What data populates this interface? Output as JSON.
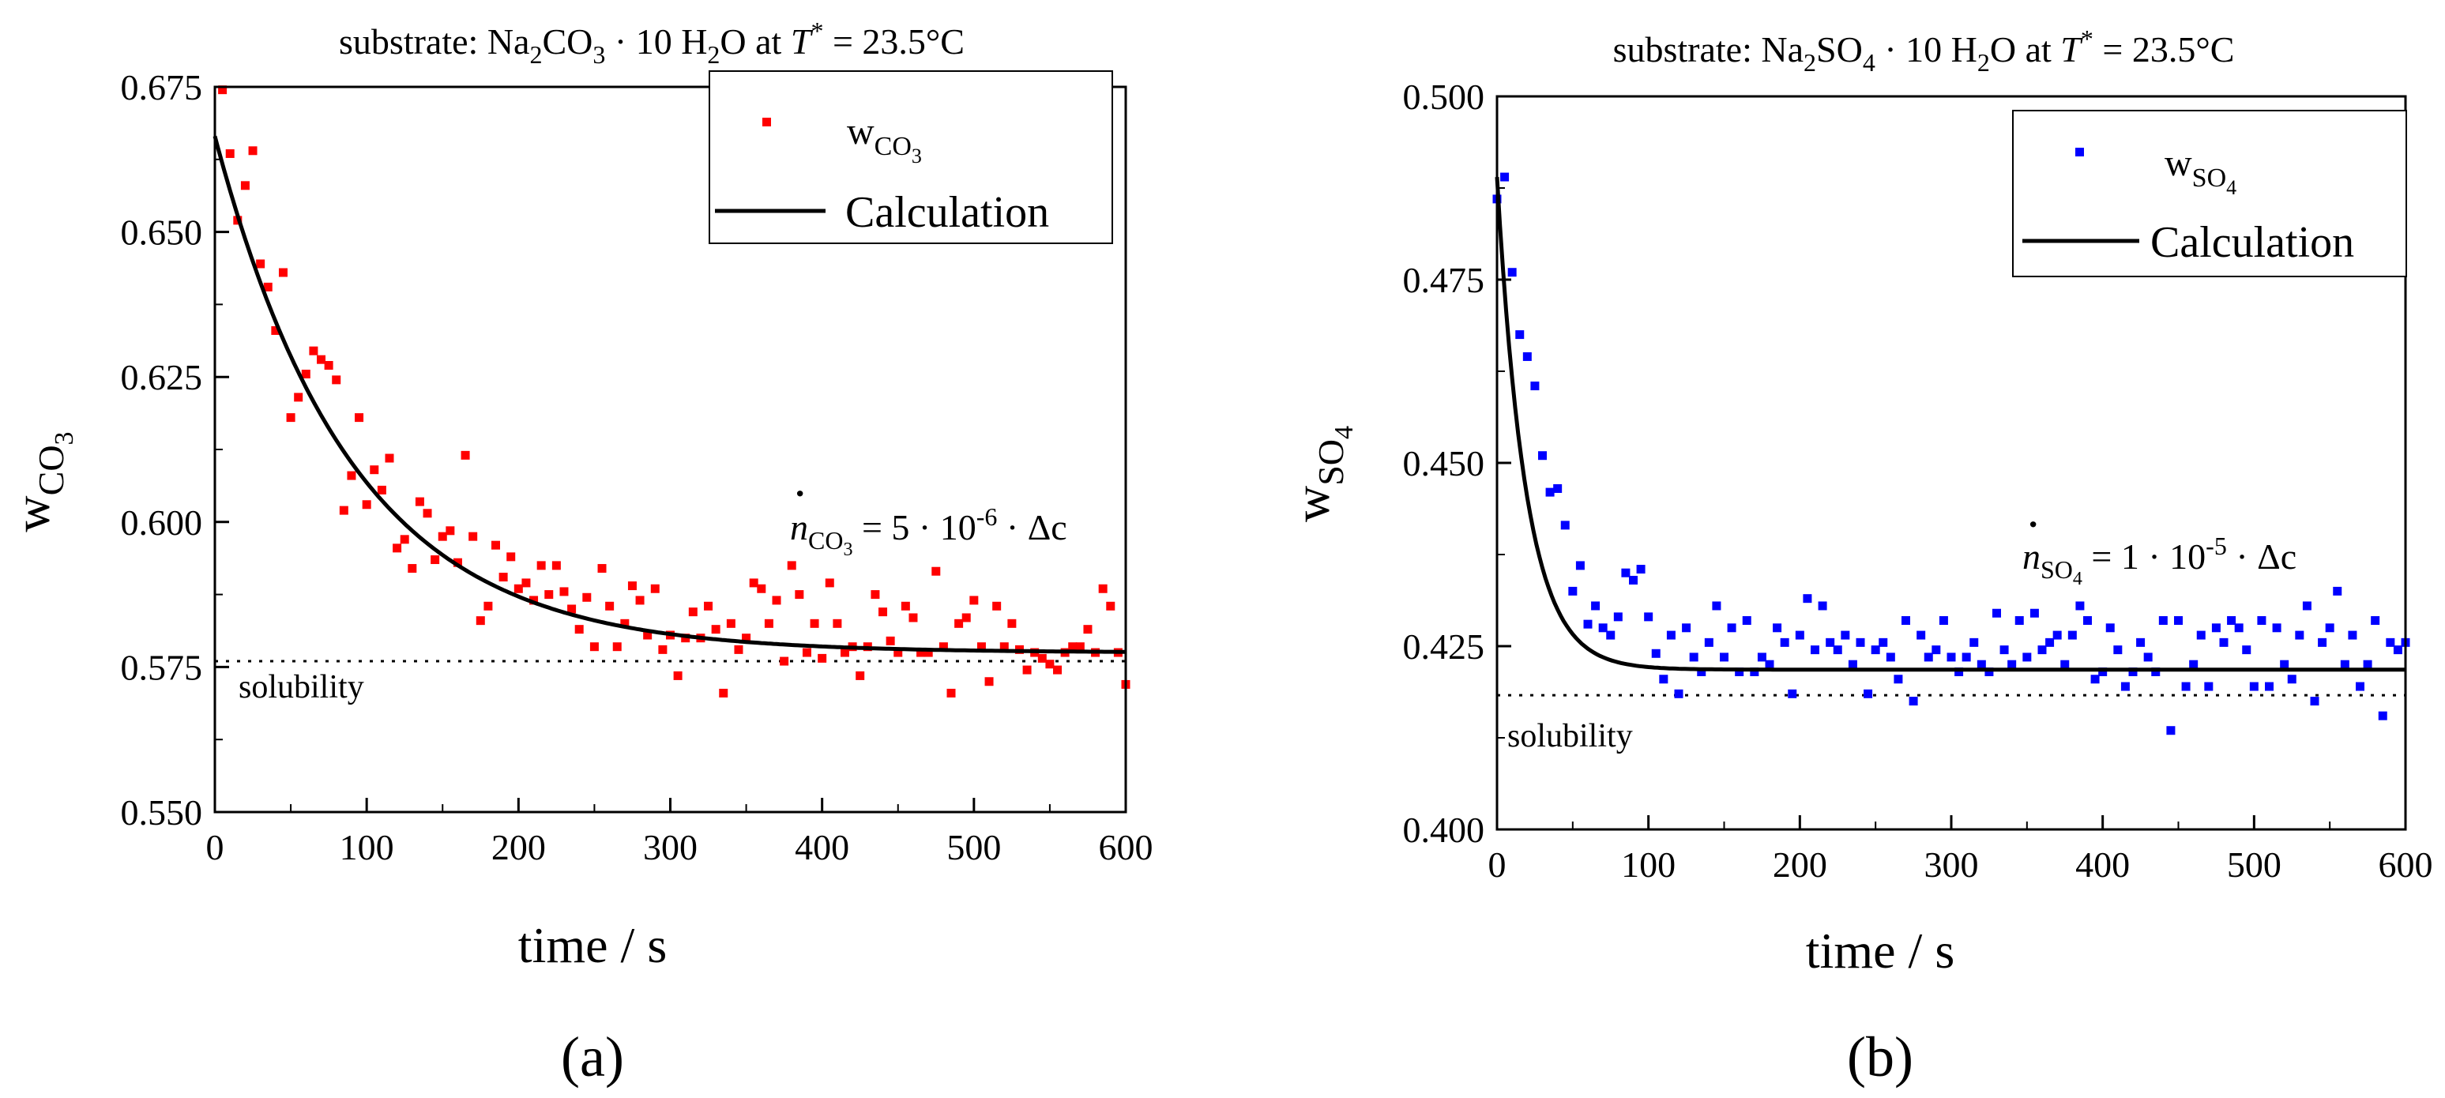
{
  "chart_data": [
    {
      "panel_label": "(a)",
      "type": "scatter",
      "title": {
        "prefix": "substrate: Na",
        "sub1": "2",
        "mid1": "CO",
        "sub2": "3",
        "mid2": " · 10 H",
        "sub3": "2",
        "mid3": "O at ",
        "var": "T",
        "sup": "*",
        "suffix": " = 23.5°C"
      },
      "xlabel": "time / s",
      "ylabel": {
        "main": "w",
        "sub": "CO",
        "subsub": "3"
      },
      "xlim": [
        0,
        600
      ],
      "ylim": [
        0.55,
        0.675
      ],
      "xticks": [
        "0",
        "100",
        "200",
        "300",
        "400",
        "500",
        "600"
      ],
      "yticks": [
        "0.550",
        "0.575",
        "0.600",
        "0.625",
        "0.650",
        "0.675"
      ],
      "legend": {
        "position": "top-right",
        "series_main": "w",
        "series_sub": "CO",
        "series_subsub": "3",
        "line_label": "Calculation"
      },
      "annotation": {
        "var": "n",
        "dot": "·",
        "sub": "CO",
        "subsub": "3",
        "rest": " = 5 · 10",
        "exp": "-6",
        "tail": " · Δc"
      },
      "solubility": {
        "label": "solubility",
        "value": 0.576
      },
      "series": [
        {
          "name": "w_CO3",
          "color": "#ff0000",
          "x": [
            5,
            10,
            15,
            20,
            25,
            30,
            35,
            40,
            45,
            50,
            55,
            60,
            65,
            70,
            75,
            80,
            85,
            90,
            95,
            100,
            105,
            110,
            115,
            120,
            125,
            130,
            135,
            140,
            145,
            150,
            155,
            160,
            165,
            170,
            175,
            180,
            185,
            190,
            195,
            200,
            205,
            210,
            215,
            220,
            225,
            230,
            235,
            240,
            245,
            250,
            255,
            260,
            265,
            270,
            275,
            280,
            285,
            290,
            295,
            300,
            305,
            310,
            315,
            320,
            325,
            330,
            335,
            340,
            345,
            350,
            355,
            360,
            365,
            370,
            375,
            380,
            385,
            390,
            395,
            400,
            405,
            410,
            415,
            420,
            425,
            430,
            435,
            440,
            445,
            450,
            455,
            460,
            465,
            470,
            475,
            480,
            485,
            490,
            495,
            500,
            505,
            510,
            515,
            520,
            525,
            530,
            535,
            540,
            545,
            550,
            555,
            560,
            565,
            570,
            575,
            580,
            585,
            590,
            595,
            600
          ],
          "y": [
            0.6745,
            0.6635,
            0.652,
            0.658,
            0.664,
            0.6445,
            0.6405,
            0.633,
            0.643,
            0.618,
            0.6215,
            0.6255,
            0.6295,
            0.628,
            0.627,
            0.6245,
            0.602,
            0.608,
            0.618,
            0.603,
            0.609,
            0.6055,
            0.611,
            0.5955,
            0.597,
            0.592,
            0.6035,
            0.6015,
            0.5935,
            0.5975,
            0.5985,
            0.593,
            0.6115,
            0.5975,
            0.583,
            0.5855,
            0.596,
            0.5905,
            0.594,
            0.5885,
            0.5895,
            0.5865,
            0.5925,
            0.5875,
            0.5925,
            0.588,
            0.585,
            0.5815,
            0.587,
            0.5785,
            0.592,
            0.5855,
            0.5785,
            0.5825,
            0.589,
            0.5865,
            0.5805,
            0.5885,
            0.578,
            0.5805,
            0.5735,
            0.58,
            0.5845,
            0.58,
            0.5855,
            0.5815,
            0.5705,
            0.5825,
            0.578,
            0.58,
            0.5895,
            0.5885,
            0.5825,
            0.5865,
            0.576,
            0.5925,
            0.5875,
            0.5775,
            0.5825,
            0.5765,
            0.5895,
            0.5825,
            0.5775,
            0.5785,
            0.5735,
            0.5785,
            0.5875,
            0.5845,
            0.5795,
            0.5775,
            0.5855,
            0.5835,
            0.5775,
            0.5775,
            0.5915,
            0.5785,
            0.5705,
            0.5825,
            0.5835,
            0.5865,
            0.5785,
            0.5725,
            0.5855,
            0.5785,
            0.5825,
            0.578,
            0.5745,
            0.5775,
            0.5765,
            0.5755,
            0.5745,
            0.5775,
            0.5785,
            0.5785,
            0.5815,
            0.5775,
            0.5885,
            0.5855,
            0.5775,
            0.572
          ]
        },
        {
          "name": "Calculation",
          "color": "#000000",
          "type": "line",
          "model": {
            "plateau": 0.5775,
            "amplitude": 0.089,
            "tau": 90
          }
        }
      ]
    },
    {
      "panel_label": "(b)",
      "type": "scatter",
      "title": {
        "prefix": "substrate: Na",
        "sub1": "2",
        "mid1": "SO",
        "sub2": "4",
        "mid2": " · 10 H",
        "sub3": "2",
        "mid3": "O at ",
        "var": "T",
        "sup": "*",
        "suffix": " = 23.5°C"
      },
      "xlabel": "time / s",
      "ylabel": {
        "main": "w",
        "sub": "SO",
        "subsub": "4"
      },
      "xlim": [
        0,
        600
      ],
      "ylim": [
        0.4,
        0.5
      ],
      "xticks": [
        "0",
        "100",
        "200",
        "300",
        "400",
        "500",
        "600"
      ],
      "yticks": [
        "0.400",
        "0.425",
        "0.450",
        "0.475",
        "0.500"
      ],
      "legend": {
        "position": "top-right",
        "series_main": "w",
        "series_sub": "SO",
        "series_subsub": "4",
        "line_label": "Calculation"
      },
      "annotation": {
        "var": "n",
        "dot": "·",
        "sub": "SO",
        "subsub": "4",
        "rest": " = 1 · 10",
        "exp": "-5",
        "tail": " · Δc"
      },
      "solubility": {
        "label": "solubility",
        "value": 0.4183
      },
      "series": [
        {
          "name": "w_SO4",
          "color": "#0000ff",
          "x": [
            0,
            5,
            10,
            15,
            20,
            25,
            30,
            35,
            40,
            45,
            50,
            55,
            60,
            65,
            70,
            75,
            80,
            85,
            90,
            95,
            100,
            105,
            110,
            115,
            120,
            125,
            130,
            135,
            140,
            145,
            150,
            155,
            160,
            165,
            170,
            175,
            180,
            185,
            190,
            195,
            200,
            205,
            210,
            215,
            220,
            225,
            230,
            235,
            240,
            245,
            250,
            255,
            260,
            265,
            270,
            275,
            280,
            285,
            290,
            295,
            300,
            305,
            310,
            315,
            320,
            325,
            330,
            335,
            340,
            345,
            350,
            355,
            360,
            365,
            370,
            375,
            380,
            385,
            390,
            395,
            400,
            405,
            410,
            415,
            420,
            425,
            430,
            435,
            440,
            445,
            450,
            455,
            460,
            465,
            470,
            475,
            480,
            485,
            490,
            495,
            500,
            505,
            510,
            515,
            520,
            525,
            530,
            535,
            540,
            545,
            550,
            555,
            560,
            565,
            570,
            575,
            580,
            585,
            590,
            595,
            600
          ],
          "y": [
            0.486,
            0.489,
            0.476,
            0.4675,
            0.4645,
            0.4605,
            0.451,
            0.446,
            0.4465,
            0.4415,
            0.4325,
            0.436,
            0.428,
            0.4305,
            0.4275,
            0.4265,
            0.429,
            0.435,
            0.434,
            0.4355,
            0.429,
            0.424,
            0.4205,
            0.4265,
            0.4185,
            0.4275,
            0.4235,
            0.4215,
            0.4255,
            0.4305,
            0.4235,
            0.4275,
            0.4215,
            0.4285,
            0.4215,
            0.4235,
            0.4225,
            0.4275,
            0.4255,
            0.4185,
            0.4265,
            0.4315,
            0.4245,
            0.4305,
            0.4255,
            0.4245,
            0.4265,
            0.4225,
            0.4255,
            0.4185,
            0.4245,
            0.4255,
            0.4235,
            0.4205,
            0.4285,
            0.4175,
            0.4265,
            0.4235,
            0.4245,
            0.4285,
            0.4235,
            0.4215,
            0.4235,
            0.4255,
            0.4225,
            0.4215,
            0.4295,
            0.4245,
            0.4225,
            0.4285,
            0.4235,
            0.4295,
            0.4245,
            0.4255,
            0.4265,
            0.4225,
            0.4265,
            0.4305,
            0.4285,
            0.4205,
            0.4215,
            0.4275,
            0.4245,
            0.4195,
            0.4215,
            0.4255,
            0.4235,
            0.4215,
            0.4285,
            0.4135,
            0.4285,
            0.4195,
            0.4225,
            0.4265,
            0.4195,
            0.4275,
            0.4255,
            0.4285,
            0.4275,
            0.4245,
            0.4195,
            0.4285,
            0.4195,
            0.4275,
            0.4225,
            0.4205,
            0.4265,
            0.4305,
            0.4175,
            0.4255,
            0.4275,
            0.4325,
            0.4225,
            0.4265,
            0.4195,
            0.4225,
            0.4285,
            0.4155,
            0.4255,
            0.4245,
            0.4255
          ]
        },
        {
          "name": "Calculation",
          "color": "#000000",
          "type": "line",
          "model": {
            "plateau": 0.4218,
            "amplitude": 0.0672,
            "tau": 19
          }
        }
      ]
    }
  ]
}
